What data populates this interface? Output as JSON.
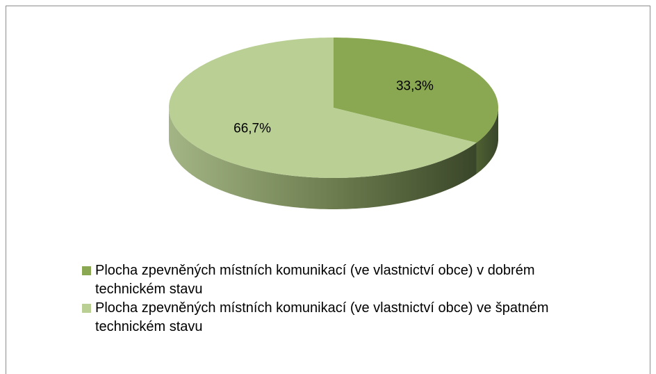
{
  "chart_data": {
    "type": "pie",
    "categories": [
      "Plocha zpevněných místních komunikací (ve vlastnictví obce) v dobrém technickém stavu",
      "Plocha zpevněných místních komunikací (ve vlastnictví obce) ve špatném technickém stavu"
    ],
    "values": [
      33.3,
      66.7
    ],
    "value_labels": [
      "33,3%",
      "66,7%"
    ],
    "colors": [
      "#8aa852",
      "#b9cf93"
    ],
    "legend": "bottom"
  }
}
